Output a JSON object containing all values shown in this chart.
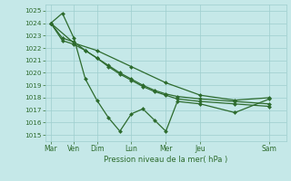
{
  "background_color": "#c5e8e8",
  "grid_color": "#9ecece",
  "line_color": "#2d6b2d",
  "marker_color": "#2d6b2d",
  "xlabel": "Pression niveau de la mer( hPa )",
  "ylim": [
    1014.5,
    1025.5
  ],
  "yticks": [
    1015,
    1016,
    1017,
    1018,
    1019,
    1020,
    1021,
    1022,
    1023,
    1024,
    1025
  ],
  "x_labels": [
    "Mar",
    "Ven",
    "Dim",
    "Lun",
    "Mer",
    "Jeu",
    "Sam"
  ],
  "x_tick_positions": [
    0,
    2,
    4,
    7,
    10,
    13,
    19
  ],
  "x_lim": [
    -0.5,
    20.5
  ],
  "series": [
    {
      "x": [
        0,
        1,
        2,
        3,
        4,
        5,
        6,
        7,
        8,
        9,
        10,
        11,
        13,
        16,
        19
      ],
      "y": [
        1024.0,
        1024.8,
        1022.8,
        1019.5,
        1017.8,
        1016.4,
        1015.3,
        1016.7,
        1017.1,
        1016.2,
        1015.3,
        1017.7,
        1017.5,
        1016.8,
        1017.9
      ]
    },
    {
      "x": [
        0,
        1,
        2,
        3,
        4,
        5,
        6,
        7,
        8,
        9,
        10,
        11,
        13,
        16,
        19
      ],
      "y": [
        1024.0,
        1022.8,
        1022.5,
        1021.8,
        1021.2,
        1020.5,
        1019.9,
        1019.4,
        1018.9,
        1018.5,
        1018.2,
        1017.9,
        1017.7,
        1017.5,
        1017.3
      ]
    },
    {
      "x": [
        0,
        1,
        2,
        3,
        4,
        5,
        6,
        7,
        8,
        9,
        10,
        11,
        13,
        16,
        19
      ],
      "y": [
        1024.0,
        1022.6,
        1022.3,
        1021.8,
        1021.2,
        1020.6,
        1020.0,
        1019.5,
        1019.0,
        1018.6,
        1018.3,
        1018.1,
        1017.9,
        1017.7,
        1017.5
      ]
    },
    {
      "x": [
        0,
        2,
        4,
        7,
        10,
        13,
        16,
        19
      ],
      "y": [
        1024.0,
        1022.4,
        1021.8,
        1020.5,
        1019.2,
        1018.2,
        1017.8,
        1018.0
      ]
    }
  ]
}
